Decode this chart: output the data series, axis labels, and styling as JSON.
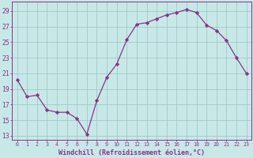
{
  "x": [
    0,
    1,
    2,
    3,
    4,
    5,
    6,
    7,
    8,
    9,
    10,
    11,
    12,
    13,
    14,
    15,
    16,
    17,
    18,
    19,
    20,
    21,
    22,
    23
  ],
  "y": [
    20.2,
    18.0,
    18.2,
    16.3,
    16.0,
    16.0,
    15.2,
    13.2,
    17.5,
    20.5,
    22.2,
    25.3,
    27.3,
    27.5,
    28.0,
    28.5,
    28.8,
    29.2,
    28.8,
    27.2,
    26.5,
    25.2,
    23.0,
    21.0
  ],
  "line_color": "#883388",
  "marker": "D",
  "marker_size": 2.2,
  "background_color": "#c8e8e8",
  "grid_color": "#a0c8c8",
  "xlabel": "Windchill (Refroidissement éolien,°C)",
  "xlabel_color": "#883388",
  "tick_color": "#883388",
  "ylabel_ticks": [
    13,
    15,
    17,
    19,
    21,
    23,
    25,
    27,
    29
  ],
  "xlim": [
    -0.5,
    23.5
  ],
  "ylim": [
    12.5,
    30.2
  ],
  "xtick_labels": [
    "0",
    "1",
    "2",
    "3",
    "4",
    "5",
    "6",
    "7",
    "8",
    "9",
    "10",
    "11",
    "12",
    "13",
    "14",
    "15",
    "16",
    "17",
    "18",
    "19",
    "20",
    "21",
    "22",
    "23"
  ],
  "ylabel_fontsize": 5.8,
  "xlabel_fontsize": 6.0,
  "xtick_fontsize": 4.8
}
